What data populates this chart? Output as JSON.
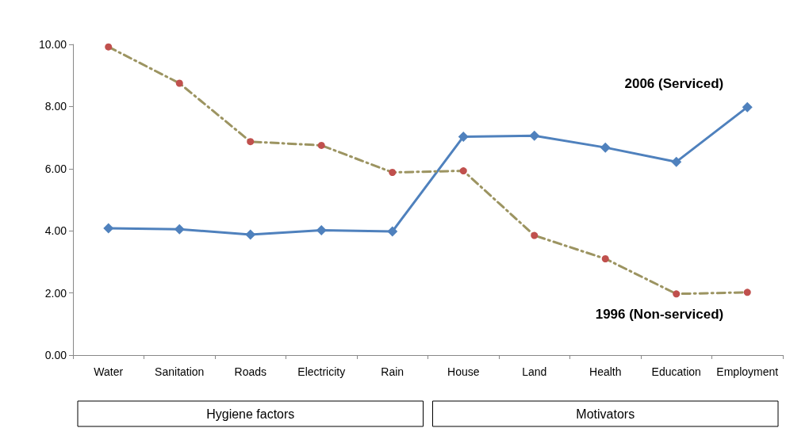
{
  "chart_data": {
    "type": "line",
    "categories": [
      "Water",
      "Sanitation",
      "Roads",
      "Electricity",
      "Rain",
      "House",
      "Land",
      "Health",
      "Education",
      "Employment"
    ],
    "series": [
      {
        "name": "2006 (Serviced)",
        "color": "#4f81bd",
        "marker": "diamond",
        "line_style": "solid",
        "values": [
          4.08,
          4.05,
          3.88,
          4.02,
          3.98,
          7.03,
          7.06,
          6.68,
          6.22,
          7.98
        ]
      },
      {
        "name": "1996 (Non-serviced)",
        "color": "#9c9461",
        "colors": [
          "#c0504d",
          "#c0504d",
          "#c0504d",
          "#c0504d",
          "#c0504d",
          "#c0504d",
          "#c0504d",
          "#c0504d",
          "#c0504d",
          "#c0504d"
        ],
        "marker": "circle",
        "line_style": "dashed",
        "values": [
          9.92,
          8.75,
          6.87,
          6.75,
          5.88,
          5.93,
          3.85,
          3.1,
          1.97,
          2.02
        ]
      }
    ],
    "ylim": [
      0,
      10
    ],
    "yticks": [
      {
        "value": 0,
        "label": "0.00"
      },
      {
        "value": 2,
        "label": "2.00"
      },
      {
        "value": 4,
        "label": "4.00"
      },
      {
        "value": 6,
        "label": "6.00"
      },
      {
        "value": 8,
        "label": "8.00"
      },
      {
        "value": 10,
        "label": "10.00"
      }
    ],
    "grid": false,
    "legend": false,
    "annotations": [
      "Hygiene factors",
      "Motivators"
    ]
  }
}
